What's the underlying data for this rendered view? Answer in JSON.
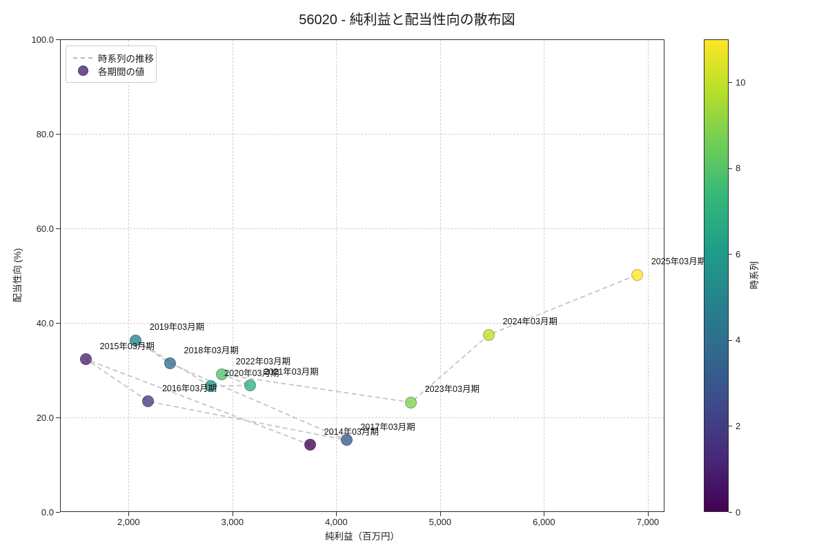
{
  "title": "56020 - 純利益と配当性向の散布図",
  "legend": {
    "line_label": "時系列の推移",
    "marker_label": "各期間の値"
  },
  "colorbar": {
    "label": "時系列",
    "ticks": [
      0,
      2,
      4,
      6,
      8,
      10
    ],
    "vmin": 0,
    "vmax": 11,
    "gradient": [
      "#440154",
      "#482878",
      "#3e4989",
      "#31688e",
      "#26828e",
      "#1f9e89",
      "#35b779",
      "#6ece58",
      "#b5de2b",
      "#fde725"
    ]
  },
  "chart_data": {
    "type": "scatter",
    "title": "56020 - 純利益と配当性向の散布図",
    "xlabel": "純利益（百万円）",
    "ylabel": "配当性向 (%)",
    "xlim": [
      1340,
      7160
    ],
    "ylim": [
      0,
      100
    ],
    "x_ticks": [
      2000,
      3000,
      4000,
      5000,
      6000,
      7000
    ],
    "x_tick_labels": [
      "2,000",
      "3,000",
      "4,000",
      "5,000",
      "6,000",
      "7,000"
    ],
    "y_ticks": [
      0,
      20,
      40,
      60,
      80,
      100
    ],
    "y_tick_labels": [
      "0.0",
      "20.0",
      "40.0",
      "60.0",
      "80.0",
      "100.0"
    ],
    "grid": true,
    "legend_position": "upper left",
    "series": [
      {
        "name": "各期間の値",
        "points": [
          {
            "label": "2014年03月期",
            "x": 3750,
            "y": 14.2,
            "t": 0,
            "color": "#440154"
          },
          {
            "label": "2015年03月期",
            "x": 1590,
            "y": 32.3,
            "t": 1,
            "color": "#482173"
          },
          {
            "label": "2016年03月期",
            "x": 2190,
            "y": 23.4,
            "t": 2,
            "color": "#423d84"
          },
          {
            "label": "2017年03月期",
            "x": 4100,
            "y": 15.2,
            "t": 3,
            "color": "#365c8d"
          },
          {
            "label": "2018年03月期",
            "x": 2400,
            "y": 31.4,
            "t": 4,
            "color": "#2e6e8e"
          },
          {
            "label": "2019年03月期",
            "x": 2070,
            "y": 36.3,
            "t": 5,
            "color": "#25858e"
          },
          {
            "label": "2020年03月期",
            "x": 2790,
            "y": 26.6,
            "t": 6,
            "color": "#1f998a"
          },
          {
            "label": "2021年03月期",
            "x": 3170,
            "y": 26.8,
            "t": 7,
            "color": "#2db27d"
          },
          {
            "label": "2022年03月期",
            "x": 2900,
            "y": 29.1,
            "t": 8,
            "color": "#50c46a"
          },
          {
            "label": "2023年03月期",
            "x": 4720,
            "y": 23.2,
            "t": 9,
            "color": "#7fd34e"
          },
          {
            "label": "2024年03月期",
            "x": 5470,
            "y": 37.5,
            "t": 10,
            "color": "#bedf26"
          },
          {
            "label": "2025年03月期",
            "x": 6900,
            "y": 50.2,
            "t": 11,
            "color": "#fde725"
          }
        ]
      }
    ],
    "connector": {
      "style": "dashed",
      "color": "#c4c4c4",
      "order": "chronological"
    }
  }
}
